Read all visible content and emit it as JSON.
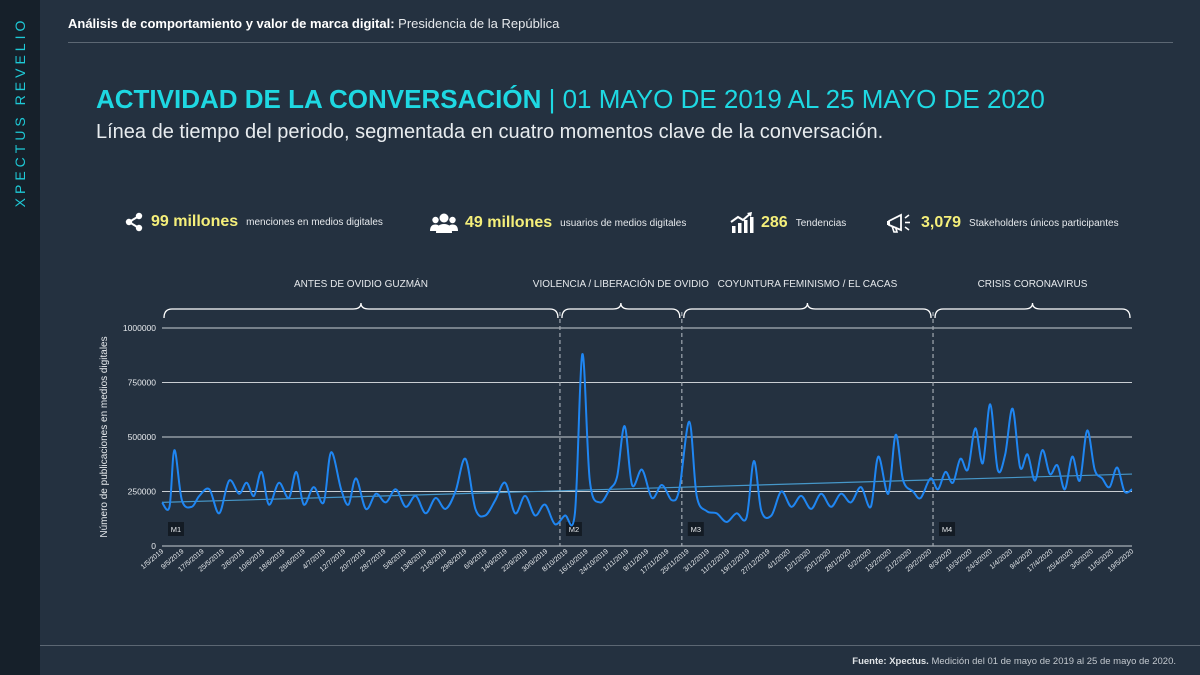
{
  "brand": "XPECTUS REVELIO",
  "header": {
    "bold": "Análisis de comportamiento y valor de marca digital:",
    "rest": " Presidencia de la República"
  },
  "title": {
    "bold": "ACTIVIDAD DE LA CONVERSACIÓN",
    "rest": " | 01 MAYO DE 2019 AL 25 MAYO DE 2020"
  },
  "subtitle": "Línea de tiempo del periodo, segmentada en cuatro momentos clave de la conversación.",
  "stats": [
    {
      "icon": "share-icon",
      "value": "99 millones",
      "label": "menciones en medios digitales"
    },
    {
      "icon": "users-icon",
      "value": "49 millones",
      "label": "usuarios de medios digitales"
    },
    {
      "icon": "chart-growth-icon",
      "value": "286",
      "label": "Tendencias"
    },
    {
      "icon": "megaphone-icon",
      "value": "3,079",
      "label": "Stakeholders únicos participantes"
    }
  ],
  "colors": {
    "accent": "#1ed8e2",
    "value": "#f5ef7a",
    "line": "#1f86f2",
    "trend": "#4aa3d8",
    "bg": "#243140"
  },
  "chart_data": {
    "type": "line",
    "ylabel": "Número de publicaciones en medios digitales",
    "ylim": [
      0,
      1000000
    ],
    "yticks": [
      0,
      250000,
      500000,
      750000,
      1000000
    ],
    "ytick_labels": [
      "0",
      "250000",
      "500000",
      "750000",
      "1000000"
    ],
    "grid": true,
    "x_start": "2019-05-01",
    "x_end": "2020-05-25",
    "xtick_labels": [
      "1/5/2019",
      "9/5/2019",
      "17/5/2019",
      "25/5/2019",
      "2/6/2019",
      "10/6/2019",
      "18/6/2019",
      "26/6/2019",
      "4/7/2019",
      "12/7/2019",
      "20/7/2019",
      "28/7/2019",
      "5/8/2019",
      "13/8/2019",
      "21/8/2019",
      "29/8/2019",
      "6/9/2019",
      "14/9/2019",
      "22/9/2019",
      "30/9/2019",
      "8/10/2019",
      "16/10/2019",
      "24/10/2019",
      "1/11/2019",
      "9/11/2019",
      "17/11/2019",
      "25/11/2019",
      "3/12/2019",
      "11/12/2019",
      "19/12/2019",
      "27/12/2019",
      "4/1/2020",
      "12/1/2020",
      "20/1/2020",
      "28/1/2020",
      "5/2/2020",
      "13/2/2020",
      "21/2/2020",
      "29/2/2020",
      "8/3/2020",
      "16/3/2020",
      "24/3/2020",
      "1/4/2020",
      "9/4/2020",
      "17/4/2020",
      "25/4/2020",
      "3/5/2020",
      "11/5/2020",
      "19/5/2020"
    ],
    "segments": [
      {
        "label": "ANTES DE OVIDIO GUZMÁN",
        "marker": "M1",
        "start": "2019-05-01",
        "end": "2019-10-08"
      },
      {
        "label": "VIOLENCIA / LIBERACIÓN DE OVIDIO",
        "marker": "M2",
        "start": "2019-10-08",
        "end": "2019-11-26"
      },
      {
        "label": "COYUNTURA FEMINISMO / EL CACAS",
        "marker": "M3",
        "start": "2019-11-26",
        "end": "2020-03-06"
      },
      {
        "label": "CRISIS CORONAVIRUS",
        "marker": "M4",
        "start": "2020-03-06",
        "end": "2020-05-25"
      }
    ],
    "series": [
      {
        "values_by_date": [
          [
            "2019-05-01",
            200000
          ],
          [
            "2019-05-04",
            180000
          ],
          [
            "2019-05-06",
            440000
          ],
          [
            "2019-05-09",
            210000
          ],
          [
            "2019-05-13",
            180000
          ],
          [
            "2019-05-16",
            230000
          ],
          [
            "2019-05-20",
            260000
          ],
          [
            "2019-05-24",
            150000
          ],
          [
            "2019-05-28",
            300000
          ],
          [
            "2019-06-01",
            240000
          ],
          [
            "2019-06-04",
            290000
          ],
          [
            "2019-06-07",
            230000
          ],
          [
            "2019-06-10",
            340000
          ],
          [
            "2019-06-13",
            190000
          ],
          [
            "2019-06-17",
            290000
          ],
          [
            "2019-06-21",
            220000
          ],
          [
            "2019-06-24",
            340000
          ],
          [
            "2019-06-27",
            190000
          ],
          [
            "2019-07-01",
            270000
          ],
          [
            "2019-07-05",
            200000
          ],
          [
            "2019-07-08",
            430000
          ],
          [
            "2019-07-12",
            260000
          ],
          [
            "2019-07-15",
            190000
          ],
          [
            "2019-07-18",
            310000
          ],
          [
            "2019-07-22",
            170000
          ],
          [
            "2019-07-26",
            240000
          ],
          [
            "2019-07-30",
            200000
          ],
          [
            "2019-08-03",
            260000
          ],
          [
            "2019-08-07",
            180000
          ],
          [
            "2019-08-11",
            230000
          ],
          [
            "2019-08-15",
            150000
          ],
          [
            "2019-08-19",
            220000
          ],
          [
            "2019-08-23",
            170000
          ],
          [
            "2019-08-27",
            250000
          ],
          [
            "2019-08-31",
            400000
          ],
          [
            "2019-09-04",
            170000
          ],
          [
            "2019-09-08",
            140000
          ],
          [
            "2019-09-12",
            210000
          ],
          [
            "2019-09-16",
            290000
          ],
          [
            "2019-09-20",
            150000
          ],
          [
            "2019-09-24",
            230000
          ],
          [
            "2019-09-28",
            140000
          ],
          [
            "2019-10-02",
            190000
          ],
          [
            "2019-10-06",
            100000
          ],
          [
            "2019-10-10",
            140000
          ],
          [
            "2019-10-14",
            150000
          ],
          [
            "2019-10-17",
            880000
          ],
          [
            "2019-10-20",
            300000
          ],
          [
            "2019-10-24",
            200000
          ],
          [
            "2019-10-28",
            260000
          ],
          [
            "2019-10-31",
            320000
          ],
          [
            "2019-11-03",
            550000
          ],
          [
            "2019-11-06",
            280000
          ],
          [
            "2019-11-10",
            350000
          ],
          [
            "2019-11-14",
            220000
          ],
          [
            "2019-11-18",
            280000
          ],
          [
            "2019-11-22",
            210000
          ],
          [
            "2019-11-25",
            260000
          ],
          [
            "2019-11-29",
            570000
          ],
          [
            "2019-12-02",
            230000
          ],
          [
            "2019-12-06",
            160000
          ],
          [
            "2019-12-10",
            150000
          ],
          [
            "2019-12-14",
            110000
          ],
          [
            "2019-12-18",
            150000
          ],
          [
            "2019-12-22",
            130000
          ],
          [
            "2019-12-25",
            390000
          ],
          [
            "2019-12-28",
            160000
          ],
          [
            "2020-01-01",
            140000
          ],
          [
            "2020-01-05",
            250000
          ],
          [
            "2020-01-09",
            180000
          ],
          [
            "2020-01-13",
            230000
          ],
          [
            "2020-01-17",
            170000
          ],
          [
            "2020-01-21",
            240000
          ],
          [
            "2020-01-25",
            180000
          ],
          [
            "2020-01-29",
            240000
          ],
          [
            "2020-02-02",
            200000
          ],
          [
            "2020-02-06",
            270000
          ],
          [
            "2020-02-10",
            180000
          ],
          [
            "2020-02-13",
            410000
          ],
          [
            "2020-02-17",
            240000
          ],
          [
            "2020-02-20",
            510000
          ],
          [
            "2020-02-23",
            300000
          ],
          [
            "2020-02-27",
            250000
          ],
          [
            "2020-03-01",
            220000
          ],
          [
            "2020-03-05",
            310000
          ],
          [
            "2020-03-08",
            260000
          ],
          [
            "2020-03-11",
            340000
          ],
          [
            "2020-03-14",
            290000
          ],
          [
            "2020-03-17",
            400000
          ],
          [
            "2020-03-20",
            350000
          ],
          [
            "2020-03-23",
            540000
          ],
          [
            "2020-03-26",
            380000
          ],
          [
            "2020-03-29",
            650000
          ],
          [
            "2020-04-01",
            350000
          ],
          [
            "2020-04-04",
            420000
          ],
          [
            "2020-04-07",
            630000
          ],
          [
            "2020-04-10",
            360000
          ],
          [
            "2020-04-13",
            420000
          ],
          [
            "2020-04-16",
            300000
          ],
          [
            "2020-04-19",
            440000
          ],
          [
            "2020-04-22",
            330000
          ],
          [
            "2020-04-25",
            370000
          ],
          [
            "2020-04-28",
            260000
          ],
          [
            "2020-05-01",
            410000
          ],
          [
            "2020-05-04",
            300000
          ],
          [
            "2020-05-07",
            530000
          ],
          [
            "2020-05-10",
            350000
          ],
          [
            "2020-05-13",
            310000
          ],
          [
            "2020-05-16",
            270000
          ],
          [
            "2020-05-19",
            360000
          ],
          [
            "2020-05-22",
            250000
          ],
          [
            "2020-05-25",
            260000
          ]
        ]
      }
    ],
    "trendline": [
      [
        "2019-05-01",
        200000
      ],
      [
        "2020-05-25",
        330000
      ]
    ]
  },
  "footer": {
    "bold": "Fuente: Xpectus.",
    "rest": " Medición del 01 de mayo de 2019 al 25 de mayo de 2020."
  }
}
